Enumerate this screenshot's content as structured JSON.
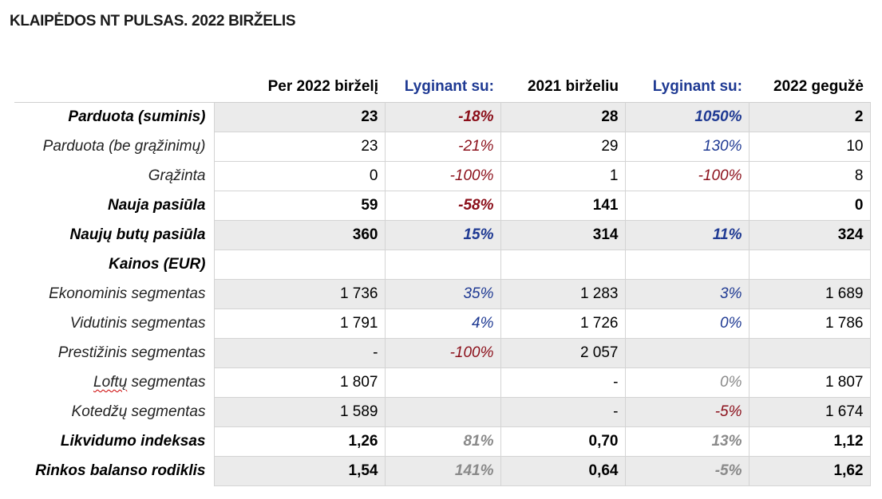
{
  "title": "KLAIPĖDOS NT PULSAS. 2022 BIRŽELIS",
  "headers": [
    "",
    "Per 2022 birželį",
    "Lyginant su:",
    "2021 birželiu",
    "Lyginant su:",
    "2022 gegužė"
  ],
  "colors": {
    "negative": "#8b0f1a",
    "positive": "#1f3a93",
    "muted": "#8a8a8a",
    "shade": "#ebebeb"
  },
  "rows": [
    {
      "label": "Parduota (suminis)",
      "c1": "23",
      "c2": "-18%",
      "c3": "28",
      "c4": "1050%",
      "c5": "2"
    },
    {
      "label": "Parduota (be grąžinimų)",
      "c1": "23",
      "c2": "-21%",
      "c3": "29",
      "c4": "130%",
      "c5": "10"
    },
    {
      "label": "Grąžinta",
      "c1": "0",
      "c2": "-100%",
      "c3": "1",
      "c4": "-100%",
      "c5": "8"
    },
    {
      "label": "Nauja pasiūla",
      "c1": "59",
      "c2": "-58%",
      "c3": "141",
      "c4": "",
      "c5": "0"
    },
    {
      "label": "Naujų butų pasiūla",
      "c1": "360",
      "c2": "15%",
      "c3": "314",
      "c4": "11%",
      "c5": "324"
    },
    {
      "label": "Kainos (EUR)",
      "c1": "",
      "c2": "",
      "c3": "",
      "c4": "",
      "c5": ""
    },
    {
      "label": "Ekonominis segmentas",
      "c1": "1 736",
      "c2": "35%",
      "c3": "1 283",
      "c4": "3%",
      "c5": "1 689"
    },
    {
      "label": "Vidutinis segmentas",
      "c1": "1 791",
      "c2": "4%",
      "c3": "1 726",
      "c4": "0%",
      "c5": "1 786"
    },
    {
      "label": "Prestižinis segmentas",
      "c1": "-",
      "c2": "-100%",
      "c3": "2 057",
      "c4": "",
      "c5": ""
    },
    {
      "label_word": "Loftų",
      "label_rest": " segmentas",
      "c1": "1 807",
      "c2": "",
      "c3": "-",
      "c4": "0%",
      "c5": "1 807"
    },
    {
      "label": "Kotedžų segmentas",
      "c1": "1 589",
      "c2": "",
      "c3": "-",
      "c4": "-5%",
      "c5": "1 674"
    },
    {
      "label": "Likvidumo indeksas",
      "c1": "1,26",
      "c2": "81%",
      "c3": "0,70",
      "c4": "13%",
      "c5": "1,12"
    },
    {
      "label": "Rinkos balanso rodiklis",
      "c1": "1,54",
      "c2": "141%",
      "c3": "0,64",
      "c4": "-5%",
      "c5": "1,62"
    }
  ]
}
